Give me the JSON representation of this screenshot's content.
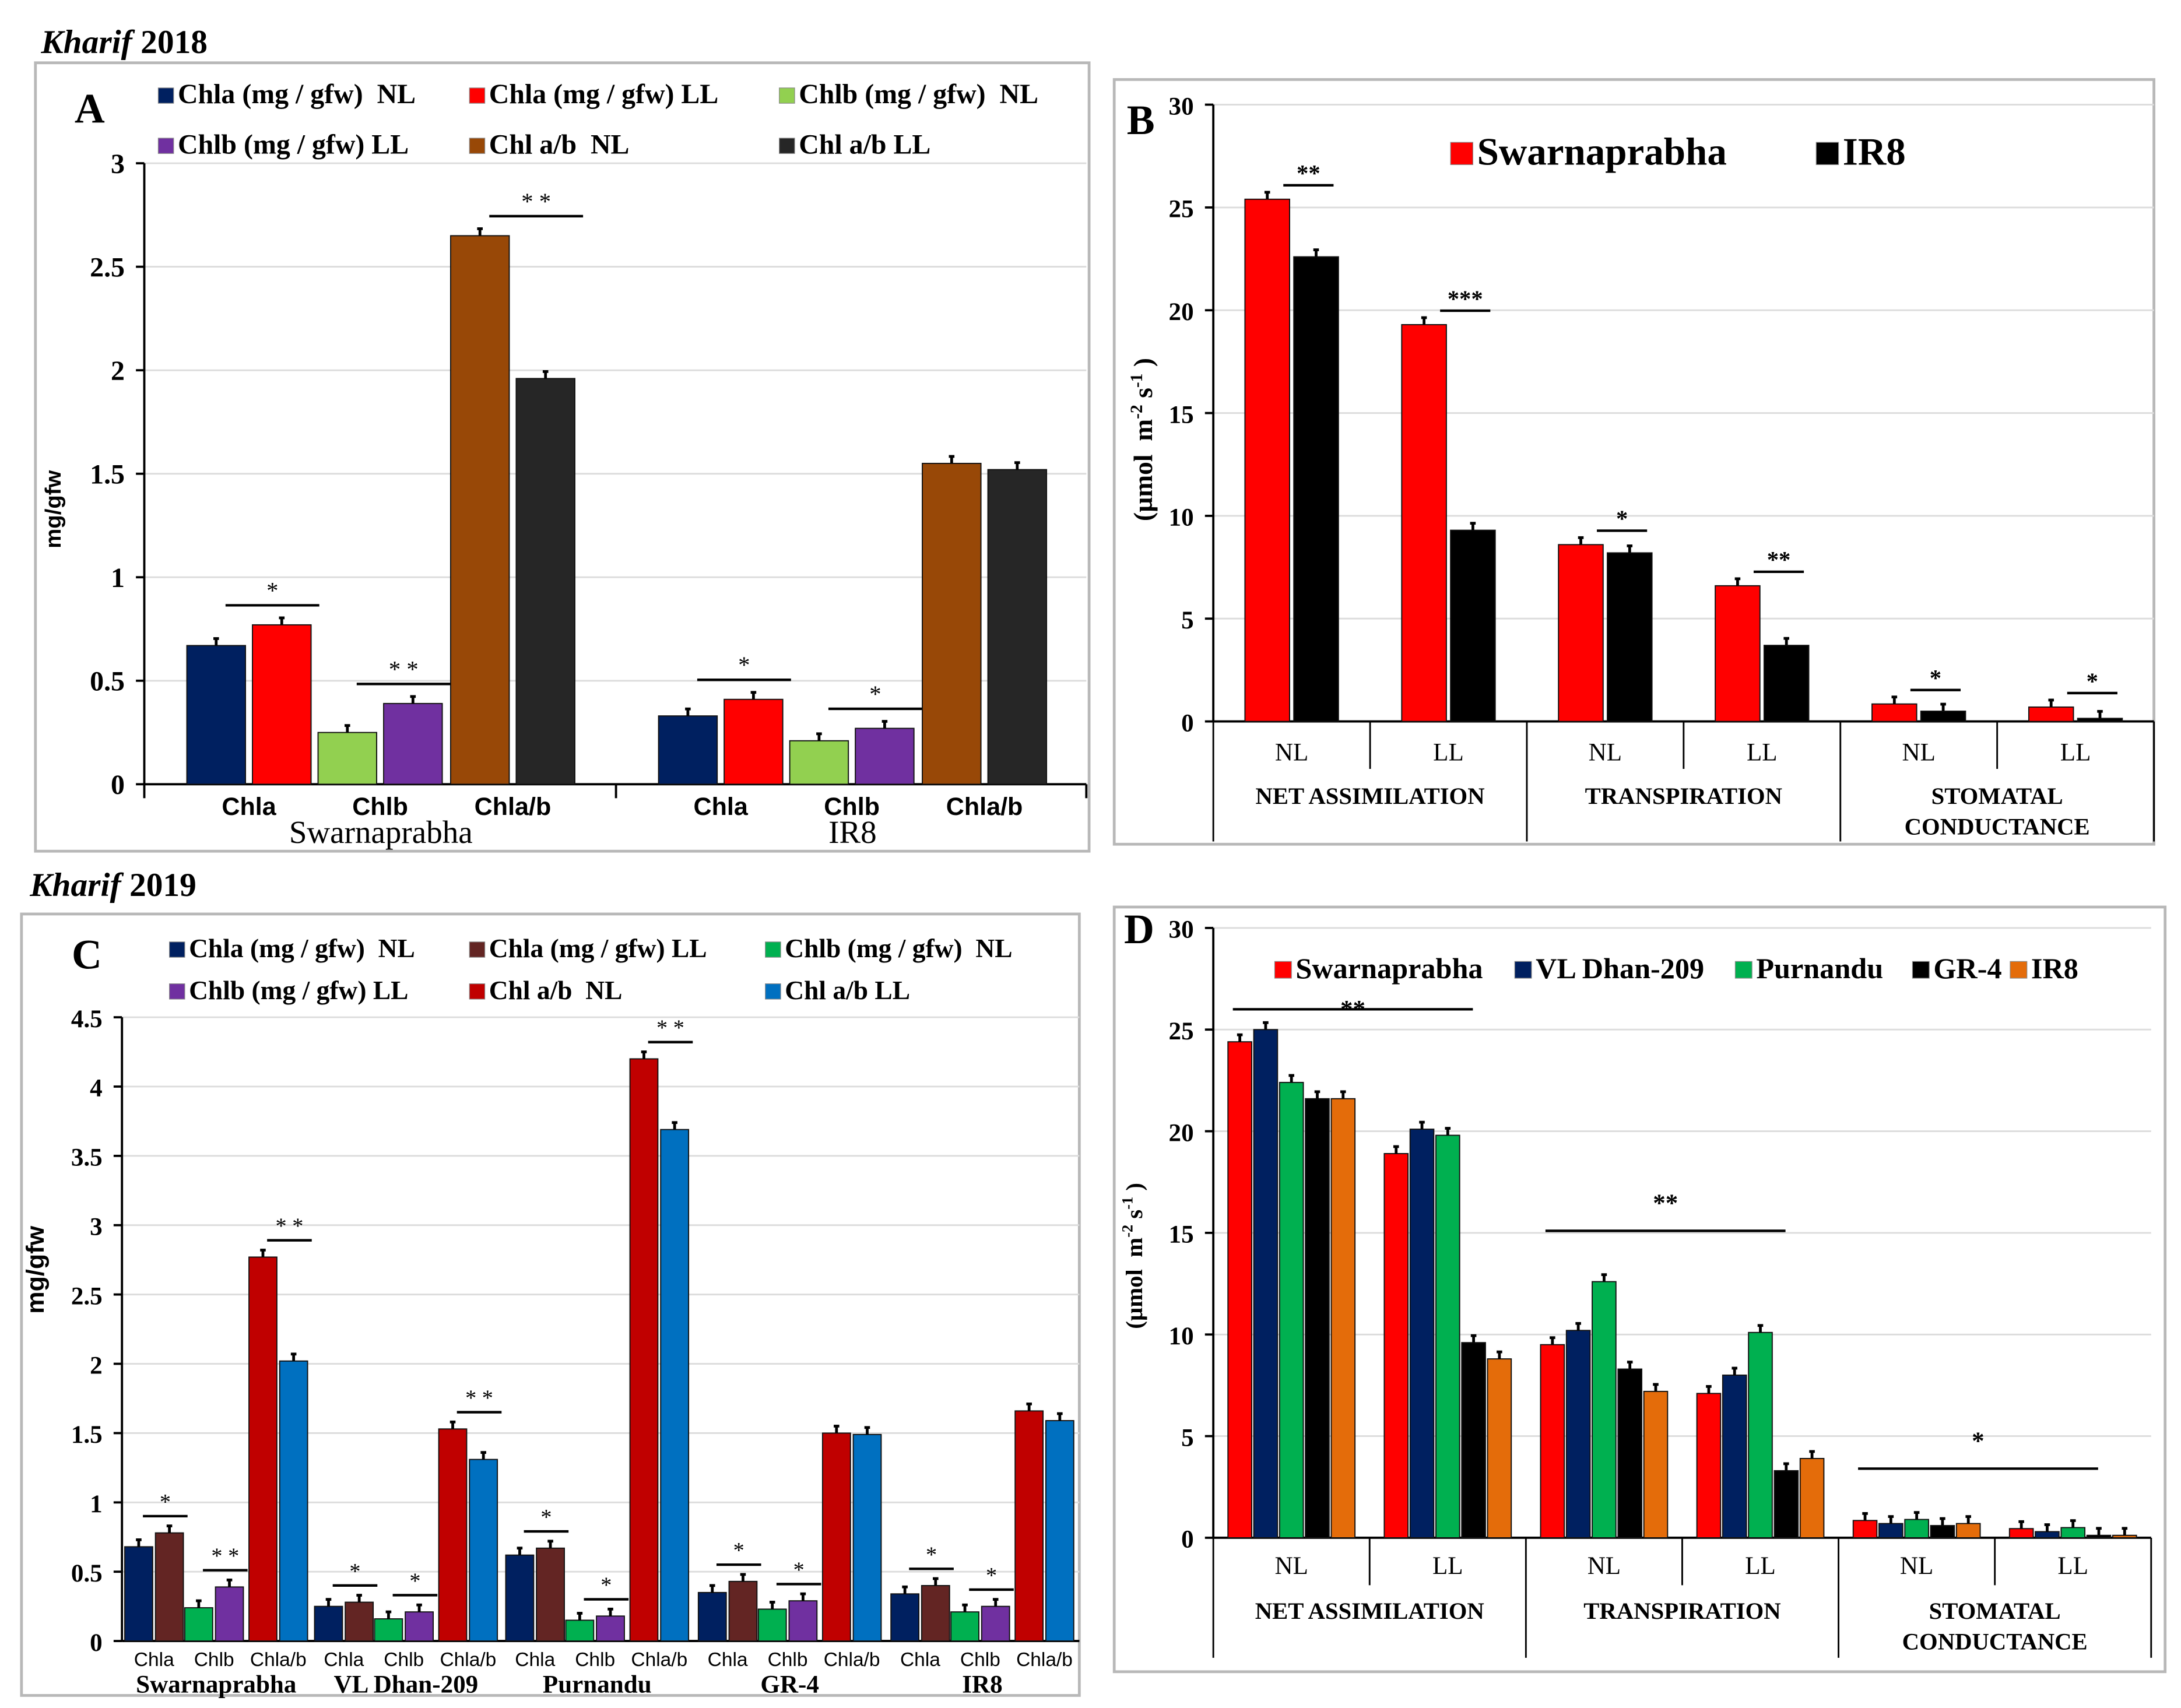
{
  "headings": {
    "kharif_2018_italic": "Kharif",
    "kharif_2018_year": " 2018",
    "kharif_2019_italic": "Kharif",
    "kharif_2019_year": " 2019"
  },
  "chart_data": [
    {
      "panel": "A",
      "type": "bar",
      "title": "",
      "xlabel": "",
      "ylabel": "mg/gfw",
      "ylim": [
        0,
        3
      ],
      "yticks": [
        "0",
        "0.5",
        "1",
        "1.5",
        "2",
        "2.5",
        "3"
      ],
      "legend_placement": "top",
      "series": [
        {
          "name": "Chla (mg / gfw)  NL",
          "color": "#002060"
        },
        {
          "name": "Chla (mg / gfw) LL",
          "color": "#FF0000"
        },
        {
          "name": "Chlb (mg / gfw)  NL",
          "color": "#92D050"
        },
        {
          "name": "Chlb (mg / gfw) LL",
          "color": "#7030A0"
        },
        {
          "name": "Chl a/b  NL",
          "color": "#984807"
        },
        {
          "name": "Chl a/b LL",
          "color": "#262626"
        }
      ],
      "groups": [
        {
          "name": "Swarnaprabha",
          "categories": [
            {
              "label": "Chla",
              "series": [
                0,
                1
              ],
              "values": [
                0.67,
                0.77
              ],
              "sig": "*"
            },
            {
              "label": "Chlb",
              "series": [
                2,
                3
              ],
              "values": [
                0.25,
                0.39
              ],
              "sig": "* *"
            },
            {
              "label": "Chla/b",
              "series": [
                4,
                5
              ],
              "values": [
                2.65,
                1.96
              ],
              "sig": "* *"
            }
          ]
        },
        {
          "name": "IR8",
          "categories": [
            {
              "label": "Chla",
              "series": [
                0,
                1
              ],
              "values": [
                0.33,
                0.41
              ],
              "sig": "*"
            },
            {
              "label": "Chlb",
              "series": [
                2,
                3
              ],
              "values": [
                0.21,
                0.27
              ],
              "sig": "*"
            },
            {
              "label": "Chla/b",
              "series": [
                4,
                5
              ],
              "values": [
                1.55,
                1.52
              ],
              "sig": ""
            }
          ]
        }
      ]
    },
    {
      "panel": "B",
      "type": "bar",
      "title": "",
      "ylabel_parts": [
        "(µmol  m",
        "-2",
        " s",
        "-1",
        " )"
      ],
      "ylim": [
        0,
        30
      ],
      "yticks": [
        "0",
        "5",
        "10",
        "15",
        "20",
        "25",
        "30"
      ],
      "legend_placement": "top-right",
      "categories": [
        "NL",
        "LL",
        "NL",
        "LL",
        "NL",
        "LL"
      ],
      "category_groups": [
        {
          "lines": [
            "NET ASSIMILATION"
          ]
        },
        {
          "lines": [
            "TRANSPIRATION"
          ]
        },
        {
          "lines": [
            "STOMATAL",
            "CONDUCTANCE"
          ]
        }
      ],
      "series": [
        {
          "name": "Swarnaprabha",
          "color": "#FF0000",
          "values": [
            25.4,
            19.3,
            8.6,
            6.6,
            0.85,
            0.7
          ]
        },
        {
          "name": "IR8",
          "color": "#000000",
          "values": [
            22.6,
            9.3,
            8.2,
            3.7,
            0.5,
            0.15
          ]
        }
      ],
      "sig": [
        "**",
        "***",
        "*",
        "**",
        "*",
        "*"
      ]
    },
    {
      "panel": "C",
      "type": "bar",
      "ylabel": "mg/gfw",
      "ylim": [
        0,
        4.5
      ],
      "yticks": [
        "0",
        "0.5",
        "1",
        "1.5",
        "2",
        "2.5",
        "3",
        "3.5",
        "4",
        "4.5"
      ],
      "legend_placement": "top",
      "series": [
        {
          "name": "Chla (mg / gfw)  NL",
          "color": "#002060"
        },
        {
          "name": "Chla (mg / gfw) LL",
          "color": "#632523"
        },
        {
          "name": "Chlb (mg / gfw)  NL",
          "color": "#00B050"
        },
        {
          "name": "Chlb (mg / gfw) LL",
          "color": "#7030A0"
        },
        {
          "name": "Chl a/b  NL",
          "color": "#C00000"
        },
        {
          "name": "Chl a/b LL",
          "color": "#0070C0"
        }
      ],
      "groups": [
        {
          "name": "Swarnaprabha",
          "categories": [
            {
              "label": "Chla",
              "series": [
                0,
                1
              ],
              "values": [
                0.68,
                0.78
              ],
              "sig": "*"
            },
            {
              "label": "Chlb",
              "series": [
                2,
                3
              ],
              "values": [
                0.24,
                0.39
              ],
              "sig": "* *"
            },
            {
              "label": "Chla/b",
              "series": [
                4,
                5
              ],
              "values": [
                2.77,
                2.02
              ],
              "sig": "* *"
            }
          ]
        },
        {
          "name": "VL Dhan-209",
          "categories": [
            {
              "label": "Chla",
              "series": [
                0,
                1
              ],
              "values": [
                0.25,
                0.28
              ],
              "sig": "*"
            },
            {
              "label": "Chlb",
              "series": [
                2,
                3
              ],
              "values": [
                0.16,
                0.21
              ],
              "sig": "*"
            },
            {
              "label": "Chla/b",
              "series": [
                4,
                5
              ],
              "values": [
                1.53,
                1.31
              ],
              "sig": "* *"
            }
          ]
        },
        {
          "name": "Purnandu",
          "categories": [
            {
              "label": "Chla",
              "series": [
                0,
                1
              ],
              "values": [
                0.62,
                0.67
              ],
              "sig": "*"
            },
            {
              "label": "Chlb",
              "series": [
                2,
                3
              ],
              "values": [
                0.15,
                0.18
              ],
              "sig": "*"
            },
            {
              "label": "Chla/b",
              "series": [
                4,
                5
              ],
              "values": [
                4.2,
                3.69
              ],
              "sig": "* *"
            }
          ]
        },
        {
          "name": "GR-4",
          "categories": [
            {
              "label": "Chla",
              "series": [
                0,
                1
              ],
              "values": [
                0.35,
                0.43
              ],
              "sig": "*"
            },
            {
              "label": "Chlb",
              "series": [
                2,
                3
              ],
              "values": [
                0.23,
                0.29
              ],
              "sig": "*"
            },
            {
              "label": "Chla/b",
              "series": [
                4,
                5
              ],
              "values": [
                1.5,
                1.49
              ],
              "sig": ""
            }
          ]
        },
        {
          "name": "IR8",
          "categories": [
            {
              "label": "Chla",
              "series": [
                0,
                1
              ],
              "values": [
                0.34,
                0.4
              ],
              "sig": "*"
            },
            {
              "label": "Chlb",
              "series": [
                2,
                3
              ],
              "values": [
                0.21,
                0.25
              ],
              "sig": "*"
            },
            {
              "label": "Chla/b",
              "series": [
                4,
                5
              ],
              "values": [
                1.66,
                1.59
              ],
              "sig": ""
            }
          ]
        }
      ]
    },
    {
      "panel": "D",
      "type": "bar",
      "ylabel_parts": [
        "(µmol  m",
        "-2",
        " s",
        "-1",
        " )"
      ],
      "ylim": [
        0,
        30
      ],
      "yticks": [
        "0",
        "5",
        "10",
        "15",
        "20",
        "25",
        "30"
      ],
      "legend_placement": "top",
      "categories": [
        "NL",
        "LL",
        "NL",
        "LL",
        "NL",
        "LL"
      ],
      "category_groups": [
        {
          "lines": [
            "NET ASSIMILATION"
          ]
        },
        {
          "lines": [
            "TRANSPIRATION"
          ]
        },
        {
          "lines": [
            "STOMATAL",
            "CONDUCTANCE"
          ]
        }
      ],
      "series": [
        {
          "name": "Swarnaprabha",
          "color": "#FF0000",
          "values": [
            24.4,
            18.9,
            9.5,
            7.1,
            0.85,
            0.45
          ]
        },
        {
          "name": "VL Dhan-209",
          "color": "#002060",
          "values": [
            25.0,
            20.1,
            10.2,
            8.0,
            0.7,
            0.3
          ]
        },
        {
          "name": "Purnandu",
          "color": "#00B050",
          "values": [
            22.4,
            19.8,
            12.6,
            10.1,
            0.9,
            0.5
          ]
        },
        {
          "name": "GR-4",
          "color": "#000000",
          "values": [
            21.6,
            9.6,
            8.3,
            3.3,
            0.6,
            0.12
          ]
        },
        {
          "name": "IR8",
          "color": "#E46C0A",
          "values": [
            21.6,
            8.8,
            7.2,
            3.9,
            0.7,
            0.12
          ]
        }
      ],
      "group_sig": [
        "**",
        "**",
        "*"
      ]
    }
  ]
}
